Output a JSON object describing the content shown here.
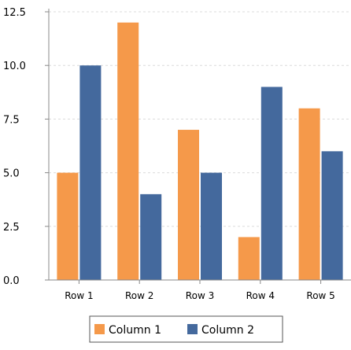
{
  "chart_data": {
    "type": "bar",
    "title": "",
    "xlabel": "",
    "ylabel": "",
    "categories": [
      "Row 1",
      "Row 2",
      "Row 3",
      "Row 4",
      "Row 5"
    ],
    "series": [
      {
        "name": "Column 1",
        "color": "#f5994a",
        "values": [
          5,
          12,
          7,
          2,
          8
        ]
      },
      {
        "name": "Column 2",
        "color": "#44699d",
        "values": [
          10,
          4,
          5,
          9,
          6
        ]
      }
    ],
    "ylim": [
      0,
      12.5
    ],
    "yticks": [
      "0.0",
      "2.5",
      "5.0",
      "7.5",
      "10.0",
      "12.5"
    ],
    "ytick_values": [
      0,
      2.5,
      5,
      7.5,
      10,
      12.5
    ],
    "grid": true,
    "legend_position": "bottom"
  }
}
